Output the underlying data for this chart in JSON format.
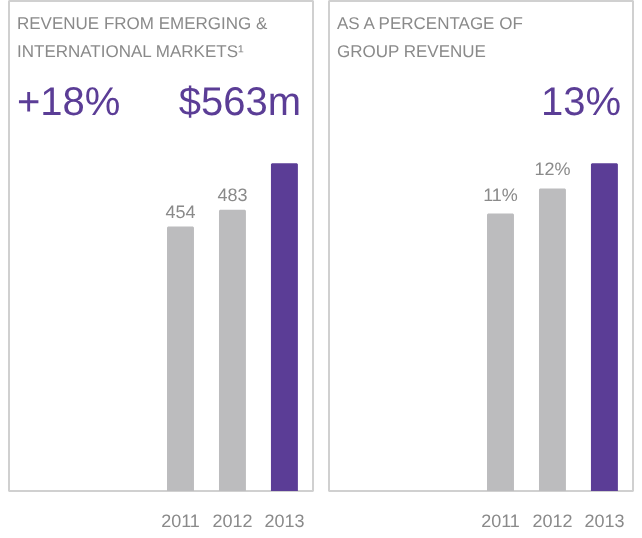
{
  "chart_data": [
    {
      "type": "bar",
      "title": "REVENUE FROM EMERGING & INTERNATIONAL MARKETS¹",
      "annotations": [
        "+18%",
        "$563m"
      ],
      "categories": [
        "2011",
        "2012",
        "2013"
      ],
      "values": [
        454,
        483,
        563
      ],
      "colors": [
        "#bcbcbe",
        "#bcbcbe",
        "#5b3d96"
      ],
      "value_labels": [
        "454",
        "483",
        null
      ]
    },
    {
      "type": "bar",
      "title": "AS A PERCENTAGE OF GROUP REVENUE",
      "annotations": [
        "13%"
      ],
      "categories": [
        "2011",
        "2012",
        "2013"
      ],
      "values": [
        11,
        12,
        13
      ],
      "colors": [
        "#bcbcbe",
        "#bcbcbe",
        "#5b3d96"
      ],
      "value_labels": [
        "11%",
        "12%",
        null
      ]
    }
  ]
}
